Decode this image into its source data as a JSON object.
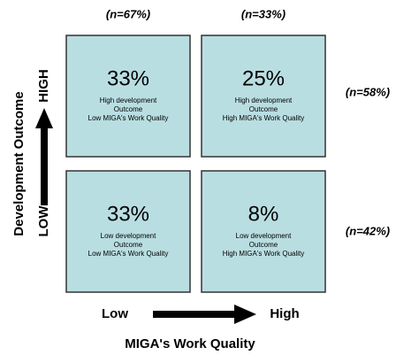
{
  "column_headers": [
    "(n=67%)",
    "(n=33%)"
  ],
  "row_headers": [
    "(n=58%)",
    "(n=42%)"
  ],
  "y_axis": {
    "title": "Development Outcome",
    "high": "HIGH",
    "low": "LOW"
  },
  "x_axis": {
    "title": "MIGA's Work Quality",
    "low": "Low",
    "high": "High"
  },
  "cells": [
    {
      "percent": "33%",
      "lines": [
        "High development",
        "Outcome",
        "Low MIGA's Work Quality"
      ]
    },
    {
      "percent": "25%",
      "lines": [
        "High development",
        "Outcome",
        "High MIGA's Work Quality"
      ]
    },
    {
      "percent": "33%",
      "lines": [
        "Low development",
        "Outcome",
        "Low MIGA's Work Quality"
      ]
    },
    {
      "percent": "8%",
      "lines": [
        "Low development",
        "Outcome",
        "High MIGA's Work Quality"
      ]
    }
  ]
}
